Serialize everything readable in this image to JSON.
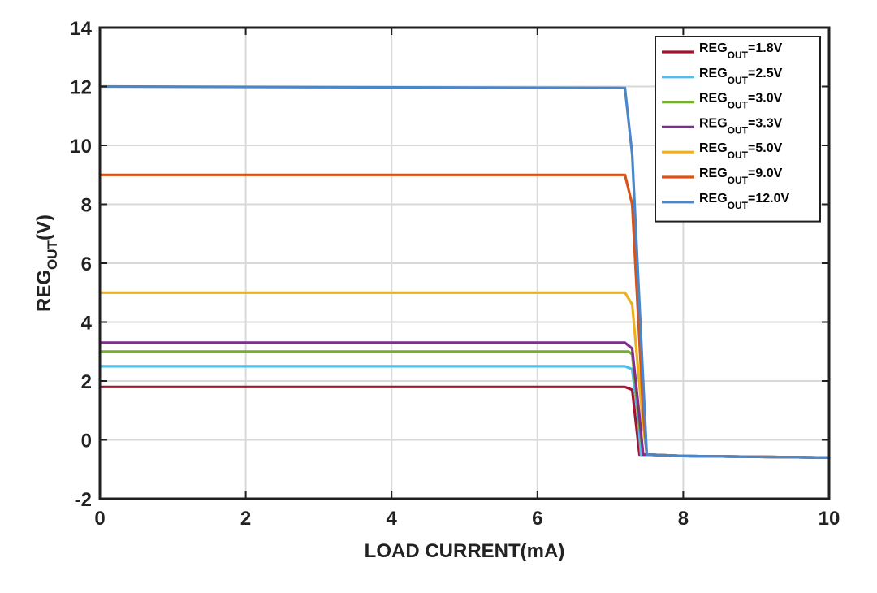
{
  "chart_data": {
    "type": "line",
    "title": "",
    "xlabel": "LOAD CURRENT(mA)",
    "ylabel": {
      "main": "REG",
      "sub": "OUT",
      "suffix": "(V)"
    },
    "xlim": [
      0,
      10
    ],
    "ylim": [
      -2,
      14
    ],
    "xticks": [
      0,
      2,
      4,
      6,
      8,
      10
    ],
    "yticks": [
      -2,
      0,
      2,
      4,
      6,
      8,
      10,
      12,
      14
    ],
    "grid": true,
    "legend_position": "top-right",
    "series": [
      {
        "name": "1.8V",
        "legend": {
          "main": "REG",
          "sub": "OUT",
          "suffix": "=1.8V"
        },
        "color": "#A2142F",
        "points": [
          [
            0,
            1.8
          ],
          [
            7.2,
            1.8
          ],
          [
            7.3,
            1.7
          ],
          [
            7.35,
            0.6
          ],
          [
            7.4,
            -0.5
          ],
          [
            7.5,
            -0.5
          ],
          [
            8.0,
            -0.55
          ],
          [
            10.0,
            -0.6
          ]
        ]
      },
      {
        "name": "2.5V",
        "legend": {
          "main": "REG",
          "sub": "OUT",
          "suffix": "=2.5V"
        },
        "color": "#4DBEEE",
        "points": [
          [
            0,
            2.5
          ],
          [
            7.2,
            2.5
          ],
          [
            7.3,
            2.4
          ],
          [
            7.38,
            0.8
          ],
          [
            7.42,
            -0.5
          ],
          [
            7.5,
            -0.5
          ],
          [
            8.0,
            -0.55
          ],
          [
            10.0,
            -0.6
          ]
        ]
      },
      {
        "name": "3.0V",
        "legend": {
          "main": "REG",
          "sub": "OUT",
          "suffix": "=3.0V"
        },
        "color": "#77AC30",
        "points": [
          [
            0,
            3.0
          ],
          [
            7.25,
            3.0
          ],
          [
            7.3,
            2.9
          ],
          [
            7.4,
            0.5
          ],
          [
            7.45,
            -0.5
          ],
          [
            7.5,
            -0.5
          ],
          [
            8.0,
            -0.55
          ],
          [
            10.0,
            -0.6
          ]
        ]
      },
      {
        "name": "3.3V",
        "legend": {
          "main": "REG",
          "sub": "OUT",
          "suffix": "=3.3V"
        },
        "color": "#7E2F8E",
        "points": [
          [
            0,
            3.3
          ],
          [
            7.2,
            3.3
          ],
          [
            7.3,
            3.1
          ],
          [
            7.4,
            0.8
          ],
          [
            7.45,
            -0.5
          ],
          [
            7.5,
            -0.5
          ],
          [
            8.0,
            -0.55
          ],
          [
            10.0,
            -0.6
          ]
        ]
      },
      {
        "name": "5.0V",
        "legend": {
          "main": "REG",
          "sub": "OUT",
          "suffix": "=5.0V"
        },
        "color": "#EDB120",
        "points": [
          [
            0,
            5.0
          ],
          [
            7.2,
            5.0
          ],
          [
            7.3,
            4.6
          ],
          [
            7.45,
            0.5
          ],
          [
            7.5,
            -0.5
          ],
          [
            8.0,
            -0.55
          ],
          [
            10.0,
            -0.6
          ]
        ]
      },
      {
        "name": "9.0V",
        "legend": {
          "main": "REG",
          "sub": "OUT",
          "suffix": "=9.0V"
        },
        "color": "#D95319",
        "points": [
          [
            0,
            9.0
          ],
          [
            7.2,
            9.0
          ],
          [
            7.3,
            8.0
          ],
          [
            7.45,
            1.0
          ],
          [
            7.5,
            -0.5
          ],
          [
            8.0,
            -0.55
          ],
          [
            10.0,
            -0.6
          ]
        ]
      },
      {
        "name": "12.0V",
        "legend": {
          "main": "REG",
          "sub": "OUT",
          "suffix": "=12.0V"
        },
        "color": "#4A86C8",
        "points": [
          [
            0,
            12.0
          ],
          [
            7.2,
            11.95
          ],
          [
            7.3,
            9.7
          ],
          [
            7.45,
            2.0
          ],
          [
            7.5,
            -0.5
          ],
          [
            8.0,
            -0.55
          ],
          [
            10.0,
            -0.6
          ]
        ]
      }
    ]
  }
}
